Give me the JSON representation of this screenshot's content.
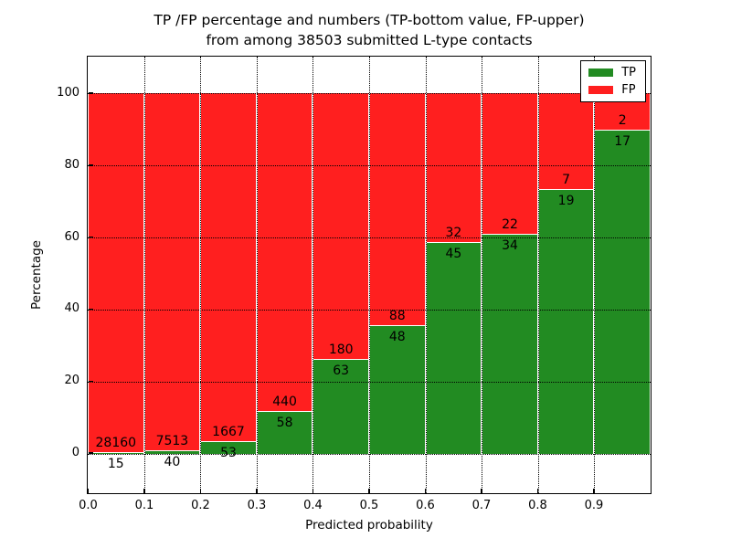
{
  "figure": {
    "title_line1": "TP /FP percentage and numbers (TP-bottom value, FP-upper)",
    "title_line2": "from among 38503 submitted L-type contacts",
    "xlabel": "Predicted probability",
    "ylabel": "Percentage"
  },
  "legend": {
    "items": [
      {
        "label": "TP",
        "color": "#228b22"
      },
      {
        "label": "FP",
        "color": "#ff1f1f"
      }
    ]
  },
  "chart_data": {
    "type": "bar",
    "stacked": true,
    "normalized_to": 100,
    "title": "TP /FP percentage and numbers (TP-bottom value, FP-upper) from among 38503 submitted L-type contacts",
    "xlabel": "Predicted probability",
    "ylabel": "Percentage",
    "total_contacts": 38503,
    "bin_starts": [
      0.0,
      0.1,
      0.2,
      0.3,
      0.4,
      0.5,
      0.6,
      0.7,
      0.8,
      0.9
    ],
    "bin_width": 0.1,
    "series": [
      {
        "name": "TP",
        "color": "#228b22",
        "counts": [
          15,
          40,
          53,
          58,
          63,
          48,
          45,
          34,
          19,
          17
        ]
      },
      {
        "name": "FP",
        "color": "#ff1f1f",
        "counts": [
          28160,
          7513,
          1667,
          440,
          180,
          88,
          32,
          22,
          7,
          2
        ]
      }
    ],
    "tp_percentages": [
      0.05,
      0.53,
      3.08,
      11.65,
      25.93,
      35.29,
      58.44,
      60.71,
      73.08,
      89.47
    ],
    "xlim": [
      0.0,
      1.0
    ],
    "ylim": [
      -11,
      110
    ],
    "xticks": [
      "0.0",
      "0.1",
      "0.2",
      "0.3",
      "0.4",
      "0.5",
      "0.6",
      "0.7",
      "0.8",
      "0.9"
    ],
    "yticks": [
      0,
      20,
      40,
      60,
      80,
      100
    ],
    "grid": true,
    "grid_style": "dotted",
    "legend_position": "upper right"
  }
}
